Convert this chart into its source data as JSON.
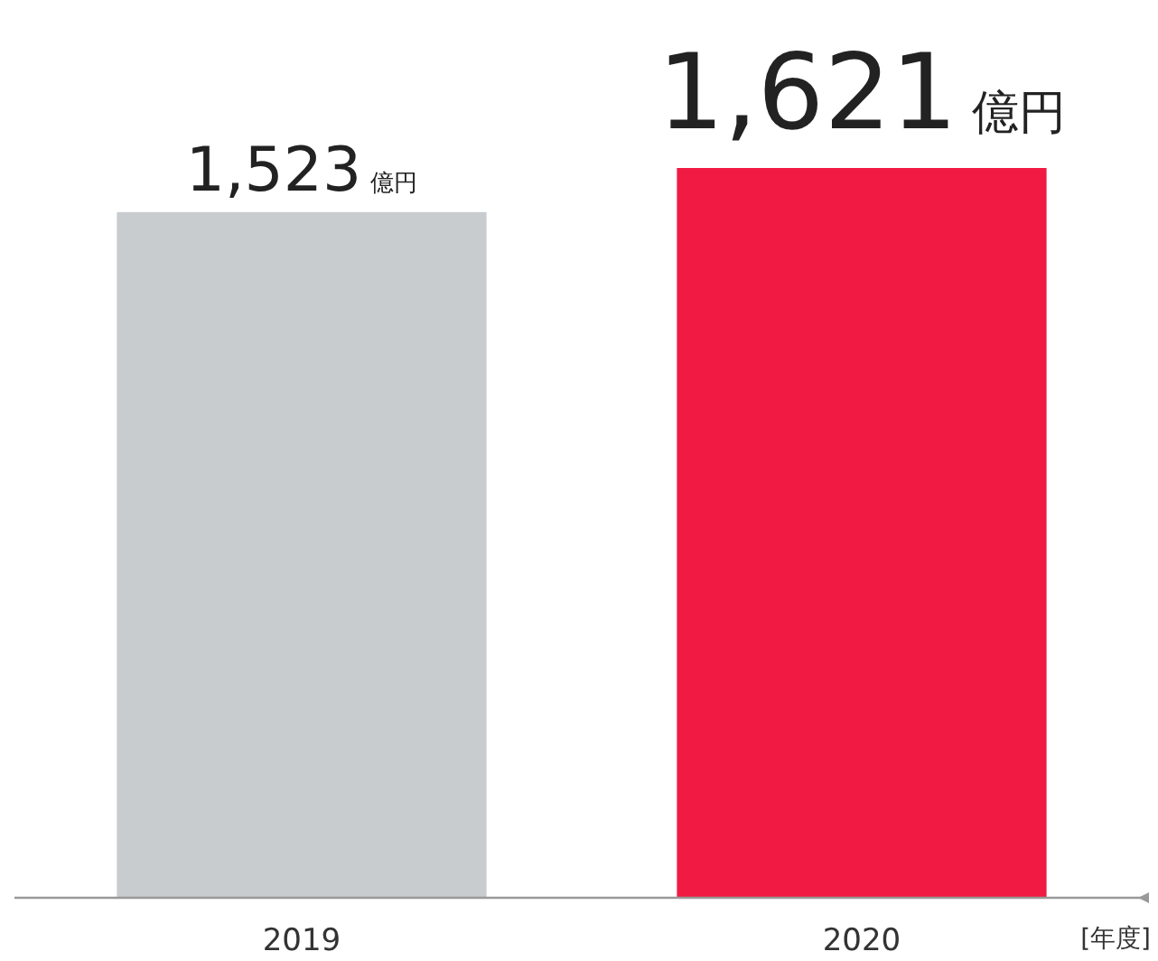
{
  "chart_data": {
    "type": "bar",
    "categories": [
      "2019",
      "2020"
    ],
    "values": [
      1523,
      1621
    ],
    "colors": [
      "#c8cccf",
      "#f01a42"
    ],
    "value_labels": [
      "1,523億円",
      "1,621億円"
    ],
    "xlabel": "[年度]"
  }
}
